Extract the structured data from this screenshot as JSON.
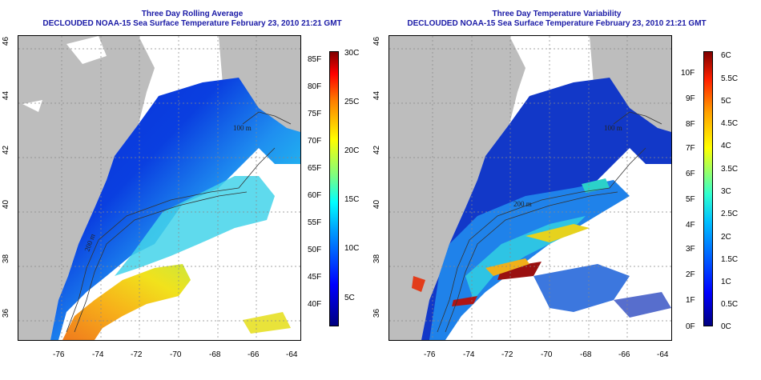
{
  "panels": [
    {
      "title_line1": "Three Day Rolling Average",
      "title_line2": "DECLOUDED NOAA-15 Sea Surface Temperature February 23, 2010 21:21 GMT",
      "lon_ticks": [
        "-76",
        "-74",
        "-72",
        "-70",
        "-68",
        "-66",
        "-64"
      ],
      "lat_ticks": [
        "36",
        "38",
        "40",
        "42",
        "44",
        "46"
      ],
      "colorbar_left": [
        "40F",
        "45F",
        "50F",
        "55F",
        "60F",
        "65F",
        "70F",
        "75F",
        "80F",
        "85F"
      ],
      "colorbar_right": [
        "5C",
        "10C",
        "15C",
        "20C",
        "25C",
        "30C"
      ],
      "contour_labels": [
        "100 m",
        "200 m",
        "0"
      ],
      "colors": {
        "land": "#bdbdbd",
        "scale": "jet"
      }
    },
    {
      "title_line1": "Three Day Temperature Variability",
      "title_line2": "DECLOUDED NOAA-15 Sea Surface Temperature February 23, 2010 21:21 GMT",
      "lon_ticks": [
        "-76",
        "-74",
        "-72",
        "-70",
        "-68",
        "-66",
        "-64"
      ],
      "lat_ticks": [
        "36",
        "38",
        "40",
        "42",
        "44",
        "46"
      ],
      "colorbar_left": [
        "0F",
        "1F",
        "2F",
        "3F",
        "4F",
        "5F",
        "6F",
        "7F",
        "8F",
        "9F",
        "10F"
      ],
      "colorbar_right": [
        "0C",
        "0.5C",
        "1C",
        "1.5C",
        "2C",
        "2.5C",
        "3C",
        "3.5C",
        "4C",
        "4.5C",
        "5C",
        "5.5C",
        "6C"
      ],
      "contour_labels": [
        "100 m",
        "200 m",
        "0"
      ],
      "colors": {
        "land": "#bdbdbd",
        "scale": "jet"
      }
    }
  ]
}
